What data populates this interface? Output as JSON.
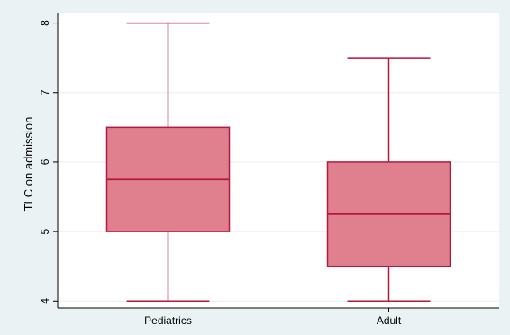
{
  "chart_data": {
    "type": "box",
    "title": "",
    "xlabel": "",
    "ylabel": "TLC on admission",
    "ylim": [
      3.9,
      8.15
    ],
    "yticks": [
      4,
      5,
      6,
      7,
      8
    ],
    "grid": true,
    "categories": [
      "Pediatrics",
      "Adult"
    ],
    "boxes": [
      {
        "category": "Pediatrics",
        "min": 4,
        "q1": 5,
        "median": 5.75,
        "q3": 6.5,
        "max": 8
      },
      {
        "category": "Adult",
        "min": 4,
        "q1": 4.5,
        "median": 5.25,
        "q3": 6,
        "max": 7.5
      }
    ],
    "colors": {
      "box_fill": "#e0808f",
      "box_stroke": "#b5193c",
      "grid": "#e8eeee",
      "background": "#eaf2f3",
      "plot_bg": "#ffffff"
    }
  }
}
